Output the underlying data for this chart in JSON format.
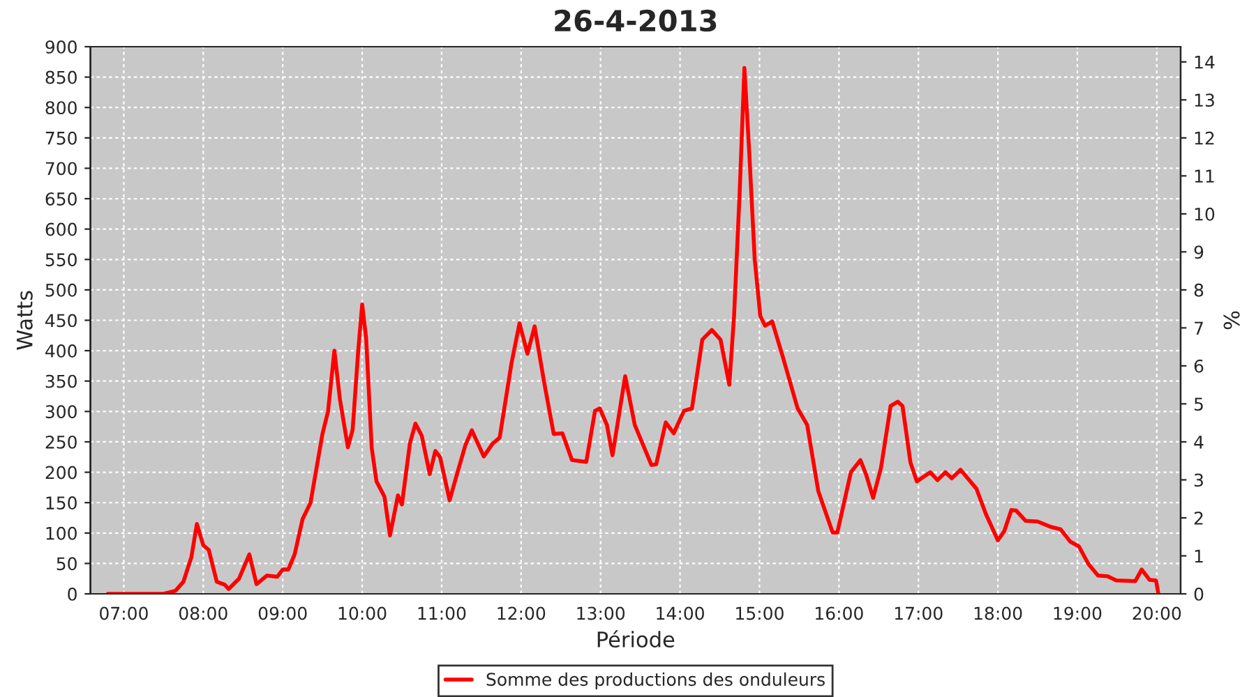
{
  "chart_data": {
    "type": "line",
    "title": "26-4-2013",
    "xlabel": "Période",
    "ylabel": "Watts",
    "y2label": "%",
    "xlim": [
      6.58,
      20.3
    ],
    "xticks": [
      {
        "value": 7,
        "label": "07:00"
      },
      {
        "value": 8,
        "label": "08:00"
      },
      {
        "value": 9,
        "label": "09:00"
      },
      {
        "value": 10,
        "label": "10:00"
      },
      {
        "value": 11,
        "label": "11:00"
      },
      {
        "value": 12,
        "label": "12:00"
      },
      {
        "value": 13,
        "label": "13:00"
      },
      {
        "value": 14,
        "label": "14:00"
      },
      {
        "value": 15,
        "label": "15:00"
      },
      {
        "value": 16,
        "label": "16:00"
      },
      {
        "value": 17,
        "label": "17:00"
      },
      {
        "value": 18,
        "label": "18:00"
      },
      {
        "value": 19,
        "label": "19:00"
      },
      {
        "value": 20,
        "label": "20:00"
      }
    ],
    "ylim": [
      0,
      900
    ],
    "yticks": [
      0,
      50,
      100,
      150,
      200,
      250,
      300,
      350,
      400,
      450,
      500,
      550,
      600,
      650,
      700,
      750,
      800,
      850,
      900
    ],
    "y2lim": [
      0,
      14.4
    ],
    "y2ticks": [
      0,
      1,
      2,
      3,
      4,
      5,
      6,
      7,
      8,
      9,
      10,
      11,
      12,
      13,
      14
    ],
    "grid": true,
    "legend": "bottom",
    "marker": "none",
    "line_style": "solid",
    "series": [
      {
        "name": "Somme des productions des onduleurs",
        "color": "#ff0000",
        "x": [
          6.8,
          7.5,
          7.65,
          7.75,
          7.85,
          7.92,
          8.0,
          8.07,
          8.17,
          8.27,
          8.32,
          8.45,
          8.58,
          8.67,
          8.8,
          8.93,
          9.0,
          9.07,
          9.15,
          9.25,
          9.35,
          9.5,
          9.57,
          9.65,
          9.72,
          9.82,
          9.88,
          9.95,
          10.0,
          10.05,
          10.12,
          10.18,
          10.28,
          10.35,
          10.45,
          10.5,
          10.6,
          10.67,
          10.75,
          10.85,
          10.92,
          10.98,
          11.1,
          11.2,
          11.3,
          11.38,
          11.53,
          11.64,
          11.73,
          11.88,
          11.98,
          12.08,
          12.17,
          12.29,
          12.41,
          12.52,
          12.64,
          12.82,
          12.93,
          12.99,
          13.08,
          13.15,
          13.31,
          13.43,
          13.64,
          13.7,
          13.82,
          13.92,
          14.05,
          14.15,
          14.28,
          14.4,
          14.51,
          14.62,
          14.68,
          14.75,
          14.81,
          14.87,
          14.94,
          15.01,
          15.07,
          15.16,
          15.3,
          15.48,
          15.6,
          15.74,
          15.92,
          15.98,
          16.15,
          16.27,
          16.34,
          16.43,
          16.53,
          16.65,
          16.74,
          16.8,
          16.9,
          16.98,
          17.15,
          17.24,
          17.34,
          17.42,
          17.53,
          17.73,
          17.85,
          18.0,
          18.08,
          18.17,
          18.23,
          18.35,
          18.5,
          18.67,
          18.79,
          18.91,
          19.02,
          19.14,
          19.26,
          19.38,
          19.49,
          19.73,
          19.81,
          19.91,
          19.99,
          20.02
        ],
        "values": [
          0,
          0,
          5,
          20,
          60,
          115,
          80,
          72,
          20,
          15,
          8,
          25,
          65,
          16,
          30,
          28,
          40,
          40,
          65,
          123,
          150,
          263,
          300,
          400,
          320,
          241,
          270,
          400,
          476,
          420,
          240,
          185,
          160,
          96,
          162,
          147,
          247,
          280,
          260,
          197,
          235,
          225,
          154,
          200,
          245,
          269,
          226,
          247,
          257,
          380,
          445,
          395,
          440,
          348,
          263,
          264,
          220,
          217,
          301,
          305,
          278,
          228,
          358,
          278,
          212,
          213,
          282,
          264,
          301,
          305,
          418,
          434,
          418,
          344,
          457,
          659,
          865,
          729,
          550,
          457,
          441,
          448,
          387,
          305,
          278,
          169,
          101,
          101,
          200,
          220,
          197,
          158,
          208,
          309,
          316,
          309,
          216,
          185,
          200,
          187,
          200,
          190,
          204,
          173,
          131,
          88,
          103,
          138,
          137,
          120,
          119,
          110,
          106,
          86,
          78,
          49,
          30,
          29,
          22,
          21,
          40,
          23,
          22,
          0
        ]
      }
    ]
  }
}
